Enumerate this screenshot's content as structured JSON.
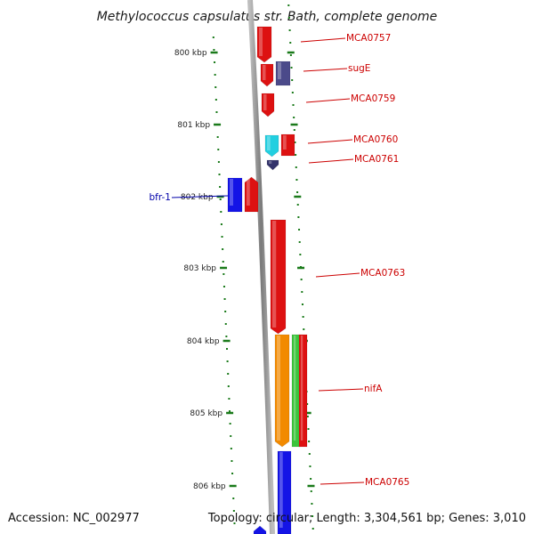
{
  "title": "Methylococcus capsulatus str. Bath, complete genome",
  "accession": "Accession: NC_002977",
  "summary": "Topology: circular; Length: 3,304,561 bp; Genes: 3,010",
  "ticks": [
    "800 kbp",
    "801 kbp",
    "802 kbp",
    "803 kbp",
    "804 kbp",
    "805 kbp",
    "806 kbp"
  ],
  "genes": [
    {
      "label": "MCA0757",
      "strand": "reverse",
      "kind": "CDS",
      "color": "#dd1111"
    },
    {
      "label": "sugE",
      "strand": "forward",
      "kind": "CDS",
      "color": "#4b4a8a"
    },
    {
      "label": "MCA0759",
      "strand": "reverse",
      "kind": "CDS",
      "color": "#dd1111"
    },
    {
      "label": "MCA0760",
      "strand": "reverse",
      "kind": "CDS",
      "color": "#dd1111"
    },
    {
      "label": "",
      "strand": "forward",
      "kind": "CDS",
      "color": "#22cfe0"
    },
    {
      "label": "MCA0761",
      "strand": "reverse",
      "kind": "CDS",
      "color": "#dd1111"
    },
    {
      "label": "bfr-1",
      "strand": "forward",
      "kind": "CDS",
      "color": "#33336b"
    },
    {
      "label": "",
      "strand": "forward",
      "kind": "CDS",
      "color": "#1414e6"
    },
    {
      "label": "MCA0763",
      "strand": "reverse",
      "kind": "CDS",
      "color": "#dd1111"
    },
    {
      "label": "",
      "strand": "reverse",
      "kind": "CDS",
      "color": "#dd1111"
    },
    {
      "label": "nifA",
      "strand": "forward",
      "kind": "CDS",
      "color": "#f28a00"
    },
    {
      "label": "",
      "strand": "forward",
      "kind": "CDS",
      "color": "#3cc43c"
    },
    {
      "label": "MCA0765",
      "strand": "reverse",
      "kind": "CDS",
      "color": "#dd1111"
    },
    {
      "label": "",
      "strand": "forward",
      "kind": "CDS",
      "color": "#1414e6"
    }
  ],
  "colors": {
    "forward_label": "#0000aa",
    "reverse_label": "#cc0000",
    "tick": "#1a7a1a",
    "backbone": "#888888"
  }
}
